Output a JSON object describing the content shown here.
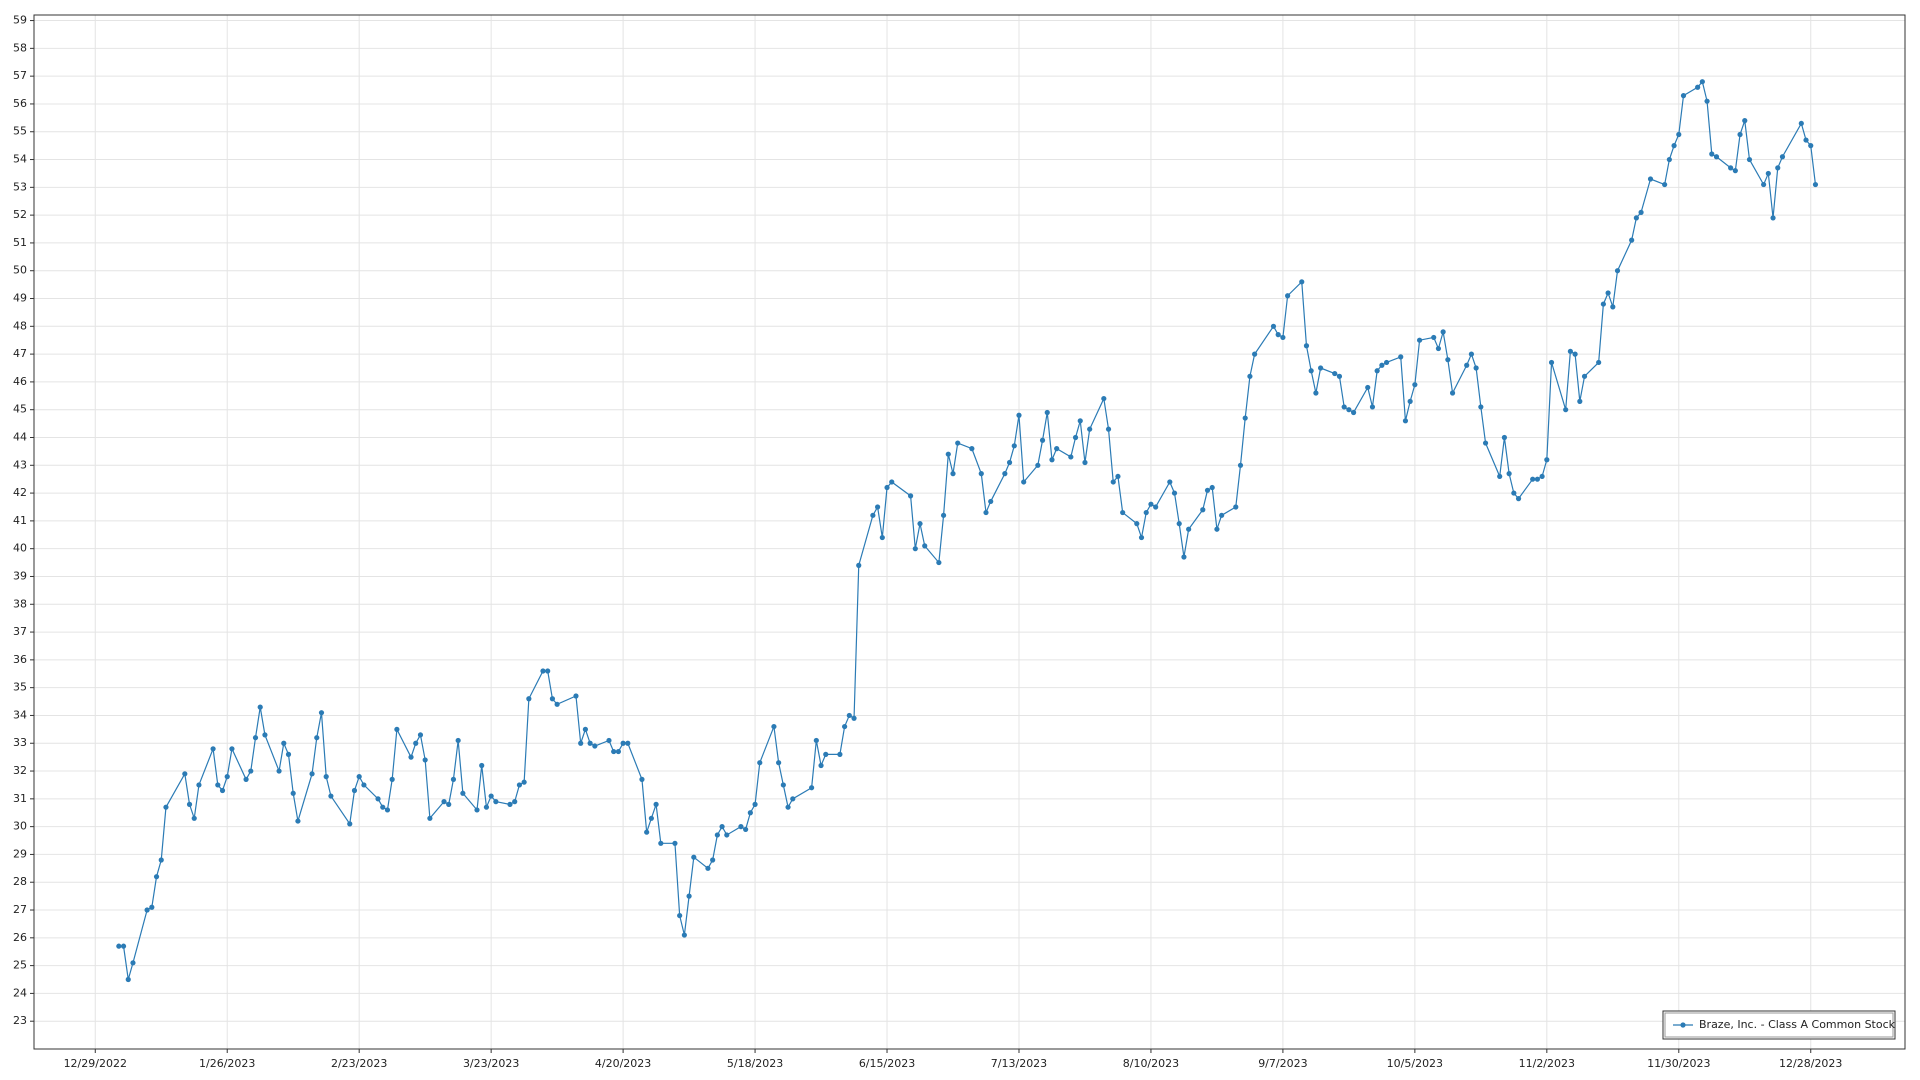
{
  "chart_data": {
    "type": "line",
    "x": [
      "1/3/2023",
      "1/4/2023",
      "1/5/2023",
      "1/6/2023",
      "1/9/2023",
      "1/10/2023",
      "1/11/2023",
      "1/12/2023",
      "1/13/2023",
      "1/17/2023",
      "1/18/2023",
      "1/19/2023",
      "1/20/2023",
      "1/23/2023",
      "1/24/2023",
      "1/25/2023",
      "1/26/2023",
      "1/27/2023",
      "1/30/2023",
      "1/31/2023",
      "2/1/2023",
      "2/2/2023",
      "2/3/2023",
      "2/6/2023",
      "2/7/2023",
      "2/8/2023",
      "2/9/2023",
      "2/10/2023",
      "2/13/2023",
      "2/14/2023",
      "2/15/2023",
      "2/16/2023",
      "2/17/2023",
      "2/21/2023",
      "2/22/2023",
      "2/23/2023",
      "2/24/2023",
      "2/27/2023",
      "2/28/2023",
      "3/1/2023",
      "3/2/2023",
      "3/3/2023",
      "3/6/2023",
      "3/7/2023",
      "3/8/2023",
      "3/9/2023",
      "3/10/2023",
      "3/13/2023",
      "3/14/2023",
      "3/15/2023",
      "3/16/2023",
      "3/17/2023",
      "3/20/2023",
      "3/21/2023",
      "3/22/2023",
      "3/23/2023",
      "3/24/2023",
      "3/27/2023",
      "3/28/2023",
      "3/29/2023",
      "3/30/2023",
      "3/31/2023",
      "4/3/2023",
      "4/4/2023",
      "4/5/2023",
      "4/6/2023",
      "4/10/2023",
      "4/11/2023",
      "4/12/2023",
      "4/13/2023",
      "4/14/2023",
      "4/17/2023",
      "4/18/2023",
      "4/19/2023",
      "4/20/2023",
      "4/21/2023",
      "4/24/2023",
      "4/25/2023",
      "4/26/2023",
      "4/27/2023",
      "4/28/2023",
      "5/1/2023",
      "5/2/2023",
      "5/3/2023",
      "5/4/2023",
      "5/5/2023",
      "5/8/2023",
      "5/9/2023",
      "5/10/2023",
      "5/11/2023",
      "5/12/2023",
      "5/15/2023",
      "5/16/2023",
      "5/17/2023",
      "5/18/2023",
      "5/19/2023",
      "5/22/2023",
      "5/23/2023",
      "5/24/2023",
      "5/25/2023",
      "5/26/2023",
      "5/30/2023",
      "5/31/2023",
      "6/1/2023",
      "6/2/2023",
      "6/5/2023",
      "6/6/2023",
      "6/7/2023",
      "6/8/2023",
      "6/9/2023",
      "6/12/2023",
      "6/13/2023",
      "6/14/2023",
      "6/15/2023",
      "6/16/2023",
      "6/20/2023",
      "6/21/2023",
      "6/22/2023",
      "6/23/2023",
      "6/26/2023",
      "6/27/2023",
      "6/28/2023",
      "6/29/2023",
      "6/30/2023",
      "7/3/2023",
      "7/5/2023",
      "7/6/2023",
      "7/7/2023",
      "7/10/2023",
      "7/11/2023",
      "7/12/2023",
      "7/13/2023",
      "7/14/2023",
      "7/17/2023",
      "7/18/2023",
      "7/19/2023",
      "7/20/2023",
      "7/21/2023",
      "7/24/2023",
      "7/25/2023",
      "7/26/2023",
      "7/27/2023",
      "7/28/2023",
      "7/31/2023",
      "8/1/2023",
      "8/2/2023",
      "8/3/2023",
      "8/4/2023",
      "8/7/2023",
      "8/8/2023",
      "8/9/2023",
      "8/10/2023",
      "8/11/2023",
      "8/14/2023",
      "8/15/2023",
      "8/16/2023",
      "8/17/2023",
      "8/18/2023",
      "8/21/2023",
      "8/22/2023",
      "8/23/2023",
      "8/24/2023",
      "8/25/2023",
      "8/28/2023",
      "8/29/2023",
      "8/30/2023",
      "8/31/2023",
      "9/1/2023",
      "9/5/2023",
      "9/6/2023",
      "9/7/2023",
      "9/8/2023",
      "9/11/2023",
      "9/12/2023",
      "9/13/2023",
      "9/14/2023",
      "9/15/2023",
      "9/18/2023",
      "9/19/2023",
      "9/20/2023",
      "9/21/2023",
      "9/22/2023",
      "9/25/2023",
      "9/26/2023",
      "9/27/2023",
      "9/28/2023",
      "9/29/2023",
      "10/2/2023",
      "10/3/2023",
      "10/4/2023",
      "10/5/2023",
      "10/6/2023",
      "10/9/2023",
      "10/10/2023",
      "10/11/2023",
      "10/12/2023",
      "10/13/2023",
      "10/16/2023",
      "10/17/2023",
      "10/18/2023",
      "10/19/2023",
      "10/20/2023",
      "10/23/2023",
      "10/24/2023",
      "10/25/2023",
      "10/26/2023",
      "10/27/2023",
      "10/30/2023",
      "10/31/2023",
      "11/1/2023",
      "11/2/2023",
      "11/3/2023",
      "11/6/2023",
      "11/7/2023",
      "11/8/2023",
      "11/9/2023",
      "11/10/2023",
      "11/13/2023",
      "11/14/2023",
      "11/15/2023",
      "11/16/2023",
      "11/17/2023",
      "11/20/2023",
      "11/21/2023",
      "11/22/2023",
      "11/24/2023",
      "11/27/2023",
      "11/28/2023",
      "11/29/2023",
      "11/30/2023",
      "12/1/2023",
      "12/4/2023",
      "12/5/2023",
      "12/6/2023",
      "12/7/2023",
      "12/8/2023",
      "12/11/2023",
      "12/12/2023",
      "12/13/2023",
      "12/14/2023",
      "12/15/2023",
      "12/18/2023",
      "12/19/2023",
      "12/20/2023",
      "12/21/2023",
      "12/22/2023",
      "12/26/2023",
      "12/27/2023",
      "12/28/2023",
      "12/29/2023"
    ],
    "series": [
      {
        "name": "Braze, Inc. - Class A Common Stock",
        "color": "#2b7bb5",
        "values": [
          25.7,
          25.7,
          24.5,
          25.1,
          27.0,
          27.1,
          28.2,
          28.8,
          30.7,
          31.9,
          30.8,
          30.3,
          31.5,
          32.8,
          31.5,
          31.3,
          31.8,
          32.8,
          31.7,
          32.0,
          33.2,
          34.3,
          33.3,
          32.0,
          33.0,
          32.6,
          31.2,
          30.2,
          31.9,
          33.2,
          34.1,
          31.8,
          31.1,
          30.1,
          31.3,
          31.8,
          31.5,
          31.0,
          30.7,
          30.6,
          31.7,
          33.5,
          32.5,
          33.0,
          33.3,
          32.4,
          30.3,
          30.9,
          30.8,
          31.7,
          33.1,
          31.2,
          30.6,
          32.2,
          30.7,
          31.1,
          30.9,
          30.8,
          30.9,
          31.5,
          31.6,
          34.6,
          35.6,
          35.6,
          34.6,
          34.4,
          34.7,
          33.0,
          33.5,
          33.0,
          32.9,
          33.1,
          32.7,
          32.7,
          33.0,
          33.0,
          31.7,
          29.8,
          30.3,
          30.8,
          29.4,
          29.4,
          26.8,
          26.1,
          27.5,
          28.9,
          28.5,
          28.8,
          29.7,
          30.0,
          29.7,
          30.0,
          29.9,
          30.5,
          30.8,
          32.3,
          33.6,
          32.3,
          31.5,
          30.7,
          31.0,
          31.4,
          33.1,
          32.2,
          32.6,
          32.6,
          33.6,
          34.0,
          33.9,
          39.4,
          41.2,
          41.5,
          40.4,
          42.2,
          42.4,
          41.9,
          40.0,
          40.9,
          40.1,
          39.5,
          41.2,
          43.4,
          42.7,
          43.8,
          43.6,
          42.7,
          41.3,
          41.7,
          42.7,
          43.1,
          43.7,
          44.8,
          42.4,
          43.0,
          43.9,
          44.9,
          43.2,
          43.6,
          43.3,
          44.0,
          44.6,
          43.1,
          44.3,
          45.4,
          44.3,
          42.4,
          42.6,
          41.3,
          40.9,
          40.4,
          41.3,
          41.6,
          41.5,
          42.4,
          42.0,
          40.9,
          39.7,
          40.7,
          41.4,
          42.1,
          42.2,
          40.7,
          41.2,
          41.5,
          43.0,
          44.7,
          46.2,
          47.0,
          48.0,
          47.7,
          47.6,
          49.1,
          49.6,
          47.3,
          46.4,
          45.6,
          46.5,
          46.3,
          46.2,
          45.1,
          45.0,
          44.9,
          45.8,
          45.1,
          46.4,
          46.6,
          46.7,
          46.9,
          44.6,
          45.3,
          45.9,
          47.5,
          47.6,
          47.2,
          47.8,
          46.8,
          45.6,
          46.6,
          47.0,
          46.5,
          45.1,
          43.8,
          42.6,
          44.0,
          42.7,
          42.0,
          41.8,
          42.5,
          42.5,
          42.6,
          43.2,
          46.7,
          45.0,
          47.1,
          47.0,
          45.3,
          46.2,
          46.7,
          48.8,
          49.2,
          48.7,
          50.0,
          51.1,
          51.9,
          52.1,
          53.3,
          53.1,
          54.0,
          54.5,
          54.9,
          56.3,
          56.6,
          56.8,
          56.1,
          54.2,
          54.1,
          53.7,
          53.6,
          54.9,
          55.4,
          54.0,
          53.1,
          53.5,
          51.9,
          53.7,
          54.1,
          55.3,
          54.7,
          54.5,
          53.1
        ]
      }
    ],
    "xlim": [
      "12/16/2022",
      "1/17/2024"
    ],
    "xticks": [
      "12/29/2022",
      "1/26/2023",
      "2/23/2023",
      "3/23/2023",
      "4/20/2023",
      "5/18/2023",
      "6/15/2023",
      "7/13/2023",
      "8/10/2023",
      "9/7/2023",
      "10/5/2023",
      "11/2/2023",
      "11/30/2023",
      "12/28/2023"
    ],
    "ylim": [
      22,
      59.2
    ],
    "yticks": [
      23,
      24,
      25,
      26,
      27,
      28,
      29,
      30,
      31,
      32,
      33,
      34,
      35,
      36,
      37,
      38,
      39,
      40,
      41,
      42,
      43,
      44,
      45,
      46,
      47,
      48,
      49,
      50,
      51,
      52,
      53,
      54,
      55,
      56,
      57,
      58,
      59
    ],
    "grid": true,
    "legend": "lower right"
  }
}
